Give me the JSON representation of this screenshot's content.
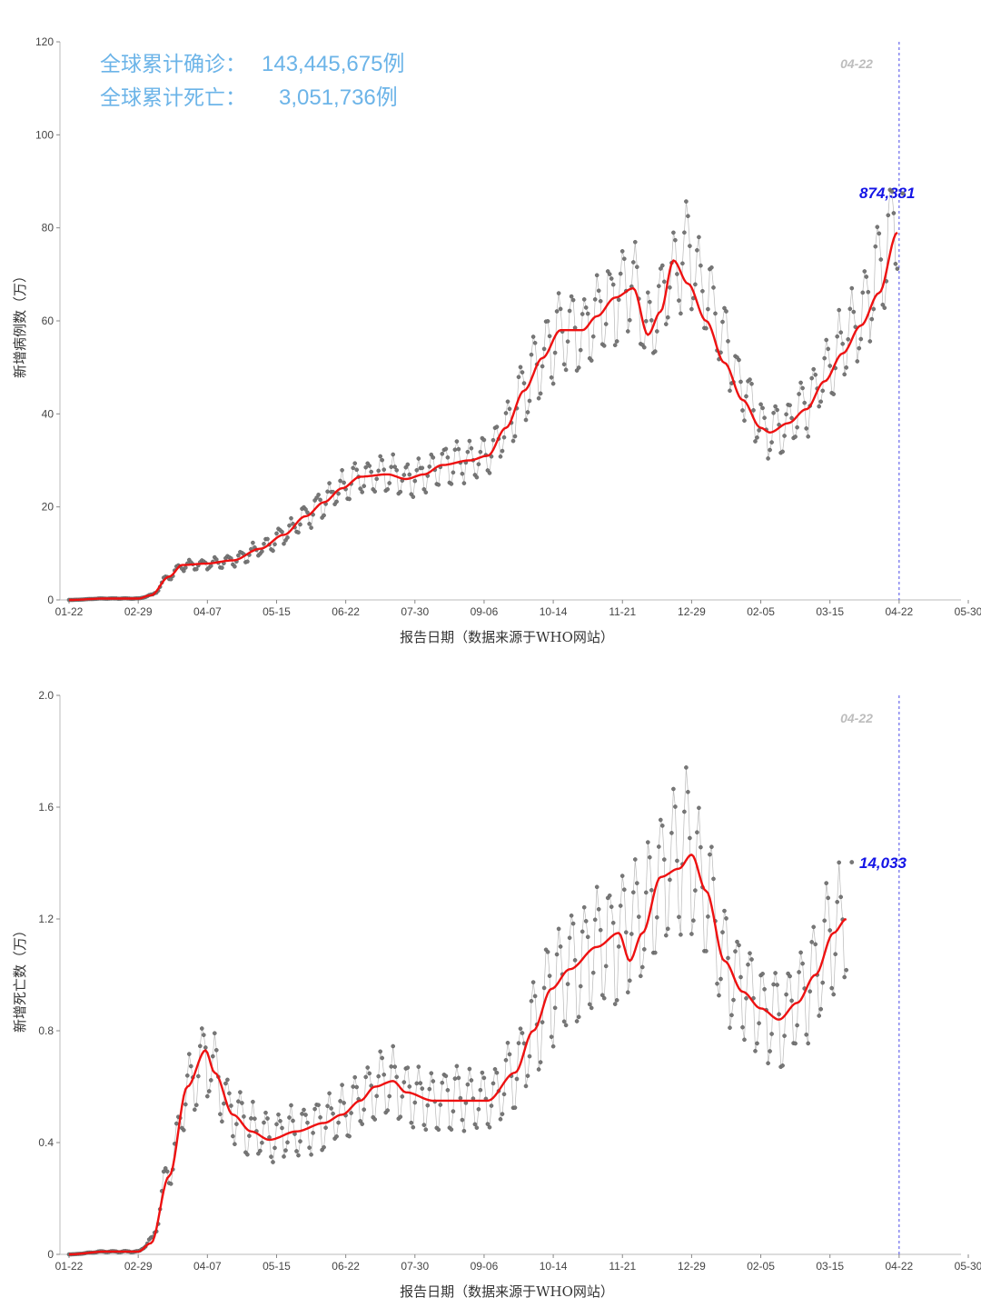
{
  "stats": {
    "cases_label": "全球累计确诊：",
    "cases_value": "143,445,675例",
    "deaths_label": "全球累计死亡：",
    "deaths_value": "3,051,736例"
  },
  "chart_data": [
    {
      "type": "line",
      "ylabel": "新增病例数（万）",
      "xlabel": "报告日期（数据来源于WHO网站）",
      "x_tick_labels": [
        "01-22",
        "02-29",
        "04-07",
        "05-15",
        "06-22",
        "07-30",
        "09-06",
        "10-14",
        "11-21",
        "12-29",
        "02-05",
        "03-15",
        "04-22",
        "05-30"
      ],
      "y_ticks": [
        "0",
        "20",
        "40",
        "60",
        "80",
        "100",
        "120"
      ],
      "ylim": [
        0,
        120
      ],
      "x_range_days": [
        -5,
        490
      ],
      "marker_date": "04-22",
      "last_value_label": "874,381",
      "last_value": 87.4,
      "series": [
        {
          "style": "daily-points",
          "knots": [
            [
              0,
              0
            ],
            [
              20,
              0.3
            ],
            [
              38,
              0.3
            ],
            [
              45,
              1
            ],
            [
              55,
              5
            ],
            [
              62,
              7.5
            ],
            [
              75,
              7.8
            ],
            [
              90,
              8.5
            ],
            [
              105,
              11
            ],
            [
              118,
              14
            ],
            [
              130,
              18
            ],
            [
              140,
              21
            ],
            [
              150,
              24
            ],
            [
              160,
              26.5
            ],
            [
              175,
              27
            ],
            [
              185,
              26
            ],
            [
              195,
              27
            ],
            [
              205,
              29
            ],
            [
              220,
              30
            ],
            [
              230,
              31
            ],
            [
              240,
              37
            ],
            [
              250,
              45
            ],
            [
              260,
              52
            ],
            [
              270,
              58
            ],
            [
              282,
              58
            ],
            [
              290,
              61
            ],
            [
              300,
              65
            ],
            [
              310,
              68
            ],
            [
              318,
              57
            ],
            [
              330,
              68
            ],
            [
              340,
              74
            ],
            [
              350,
              66
            ],
            [
              360,
              56
            ],
            [
              370,
              45
            ],
            [
              380,
              38
            ],
            [
              385,
              36
            ],
            [
              395,
              38
            ],
            [
              405,
              42
            ],
            [
              415,
              48
            ],
            [
              425,
              55
            ],
            [
              435,
              61
            ],
            [
              445,
              70
            ],
            [
              455,
              82
            ]
          ],
          "weekly_amp": 0.18
        },
        {
          "style": "smooth-average",
          "knots": [
            [
              0,
              0
            ],
            [
              20,
              0.3
            ],
            [
              38,
              0.3
            ],
            [
              45,
              1
            ],
            [
              55,
              5
            ],
            [
              62,
              7.5
            ],
            [
              75,
              7.8
            ],
            [
              90,
              8.5
            ],
            [
              105,
              11
            ],
            [
              118,
              14
            ],
            [
              130,
              18
            ],
            [
              140,
              21
            ],
            [
              150,
              24
            ],
            [
              160,
              26.5
            ],
            [
              175,
              27
            ],
            [
              185,
              26
            ],
            [
              195,
              27
            ],
            [
              205,
              29
            ],
            [
              220,
              30
            ],
            [
              230,
              31
            ],
            [
              240,
              37
            ],
            [
              250,
              45
            ],
            [
              260,
              52
            ],
            [
              270,
              58
            ],
            [
              282,
              58
            ],
            [
              290,
              61
            ],
            [
              300,
              65
            ],
            [
              310,
              67
            ],
            [
              318,
              57
            ],
            [
              325,
              62
            ],
            [
              332,
              73
            ],
            [
              340,
              68
            ],
            [
              350,
              60
            ],
            [
              360,
              51
            ],
            [
              370,
              43
            ],
            [
              380,
              37
            ],
            [
              385,
              36
            ],
            [
              395,
              38
            ],
            [
              405,
              41
            ],
            [
              415,
              47
            ],
            [
              425,
              53
            ],
            [
              435,
              59
            ],
            [
              445,
              66
            ],
            [
              455,
              79
            ]
          ]
        }
      ]
    },
    {
      "type": "line",
      "ylabel": "新增死亡数（万）",
      "xlabel": "报告日期（数据来源于WHO网站）",
      "x_tick_labels": [
        "01-22",
        "02-29",
        "04-07",
        "05-15",
        "06-22",
        "07-30",
        "09-06",
        "10-14",
        "11-21",
        "12-29",
        "02-05",
        "03-15",
        "04-22",
        "05-30"
      ],
      "y_ticks": [
        "0",
        "0.4",
        "0.8",
        "1.2",
        "1.6",
        "2.0"
      ],
      "ylim": [
        0,
        2.0
      ],
      "x_range_days": [
        -5,
        490
      ],
      "marker_date": "04-22",
      "last_value_label": "14,033",
      "last_value": 1.403,
      "series": [
        {
          "style": "daily-points",
          "knots": [
            [
              0,
              0
            ],
            [
              20,
              0.01
            ],
            [
              38,
              0.01
            ],
            [
              45,
              0.05
            ],
            [
              55,
              0.3
            ],
            [
              65,
              0.6
            ],
            [
              75,
              0.72
            ],
            [
              80,
              0.66
            ],
            [
              90,
              0.5
            ],
            [
              100,
              0.45
            ],
            [
              110,
              0.42
            ],
            [
              125,
              0.44
            ],
            [
              140,
              0.47
            ],
            [
              150,
              0.5
            ],
            [
              165,
              0.58
            ],
            [
              175,
              0.62
            ],
            [
              185,
              0.58
            ],
            [
              200,
              0.55
            ],
            [
              215,
              0.56
            ],
            [
              230,
              0.55
            ],
            [
              245,
              0.65
            ],
            [
              255,
              0.8
            ],
            [
              265,
              0.95
            ],
            [
              275,
              1.03
            ],
            [
              290,
              1.1
            ],
            [
              300,
              1.13
            ],
            [
              315,
              1.2
            ],
            [
              330,
              1.38
            ],
            [
              340,
              1.44
            ],
            [
              350,
              1.3
            ],
            [
              360,
              1.05
            ],
            [
              370,
              0.95
            ],
            [
              380,
              0.88
            ],
            [
              390,
              0.84
            ],
            [
              400,
              0.9
            ],
            [
              410,
              1.0
            ],
            [
              420,
              1.15
            ],
            [
              427,
              1.2
            ]
          ],
          "weekly_amp": 0.25
        },
        {
          "style": "smooth-average",
          "knots": [
            [
              0,
              0
            ],
            [
              20,
              0.01
            ],
            [
              38,
              0.01
            ],
            [
              45,
              0.04
            ],
            [
              55,
              0.28
            ],
            [
              65,
              0.6
            ],
            [
              75,
              0.73
            ],
            [
              80,
              0.65
            ],
            [
              90,
              0.5
            ],
            [
              100,
              0.44
            ],
            [
              110,
              0.41
            ],
            [
              125,
              0.44
            ],
            [
              140,
              0.47
            ],
            [
              150,
              0.5
            ],
            [
              160,
              0.55
            ],
            [
              168,
              0.6
            ],
            [
              178,
              0.62
            ],
            [
              185,
              0.58
            ],
            [
              200,
              0.55
            ],
            [
              215,
              0.55
            ],
            [
              230,
              0.55
            ],
            [
              245,
              0.65
            ],
            [
              255,
              0.8
            ],
            [
              265,
              0.95
            ],
            [
              275,
              1.02
            ],
            [
              290,
              1.1
            ],
            [
              302,
              1.15
            ],
            [
              308,
              1.05
            ],
            [
              315,
              1.15
            ],
            [
              325,
              1.35
            ],
            [
              335,
              1.38
            ],
            [
              342,
              1.43
            ],
            [
              350,
              1.3
            ],
            [
              360,
              1.05
            ],
            [
              370,
              0.94
            ],
            [
              380,
              0.88
            ],
            [
              390,
              0.84
            ],
            [
              400,
              0.9
            ],
            [
              410,
              1.0
            ],
            [
              420,
              1.15
            ],
            [
              427,
              1.2
            ]
          ]
        }
      ]
    }
  ]
}
